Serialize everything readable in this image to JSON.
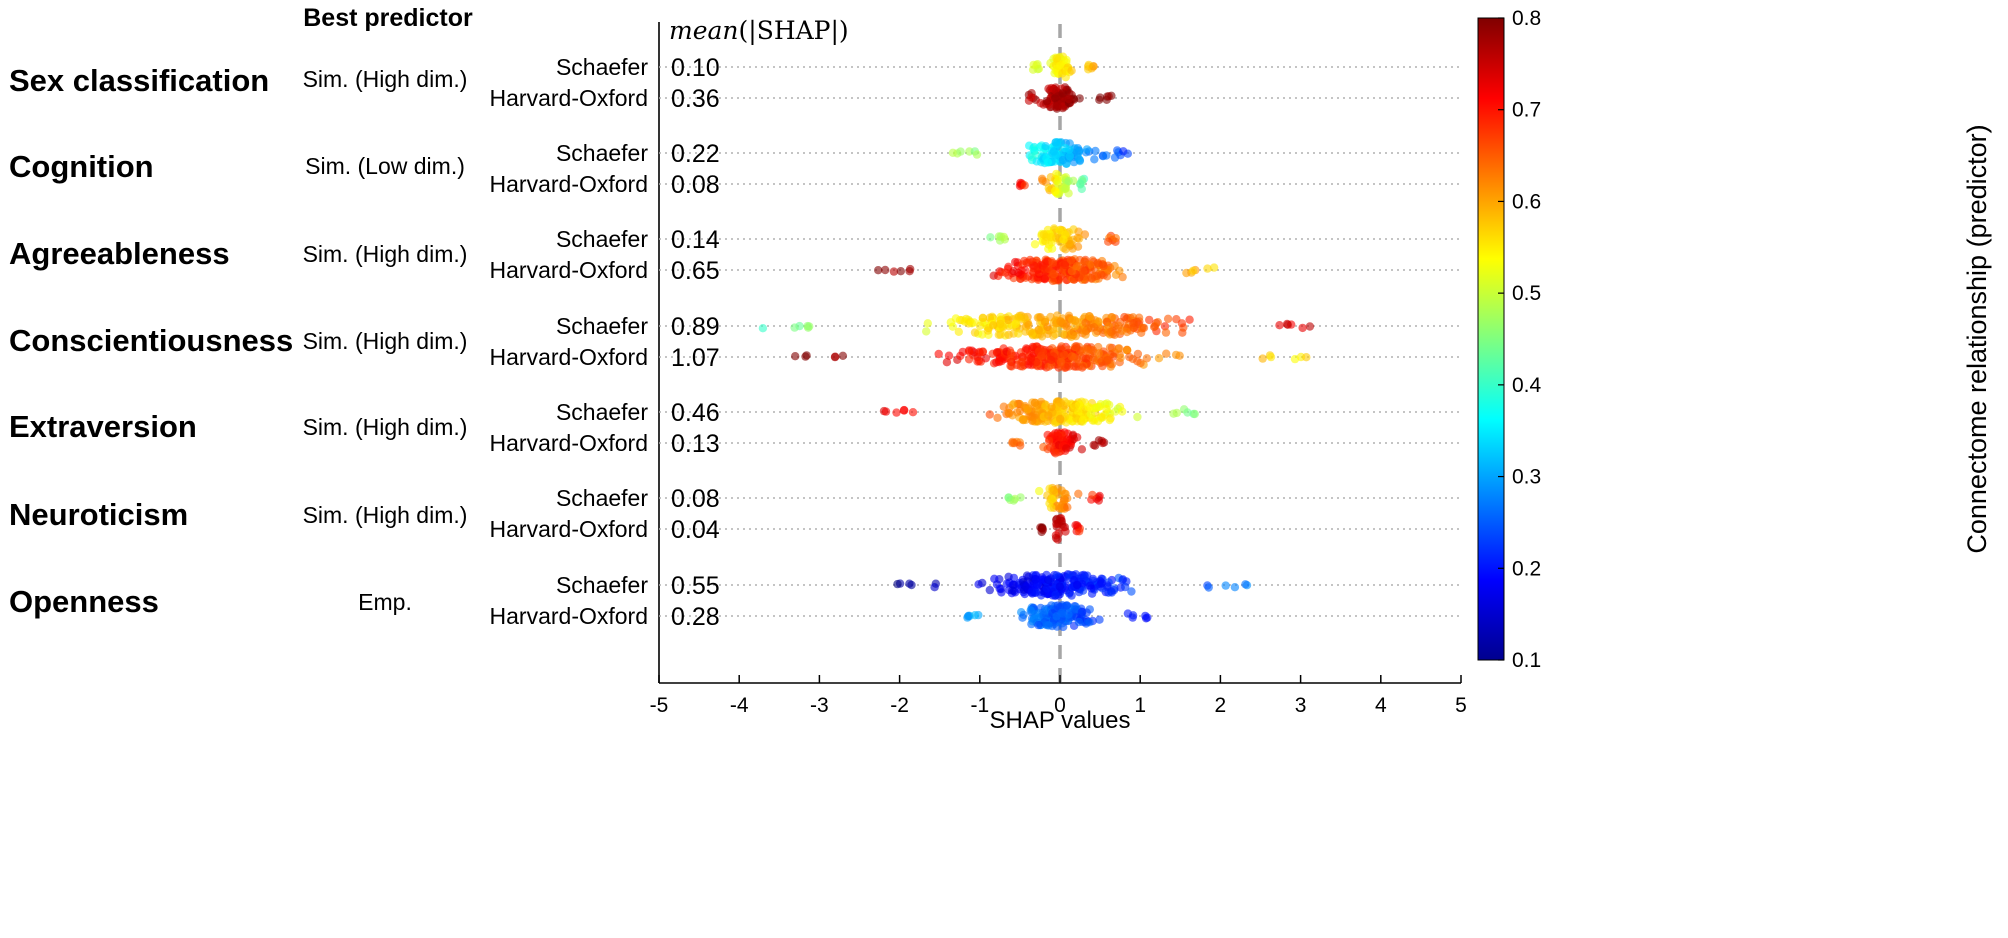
{
  "headers": {
    "best_predictor": "Best predictor",
    "mean_prefix": "mean",
    "mean_body": "(|SHAP|)"
  },
  "colors": {
    "dashed_zero": "#a6a6a6",
    "gridline": "#b0b0b0",
    "axis": "#000000"
  },
  "chart_data": {
    "type": "scatter",
    "subtype": "beeswarm",
    "xlabel": "SHAP values",
    "xlim": [
      -5,
      5
    ],
    "xticks": [
      -5,
      -4,
      -3,
      -2,
      -1,
      0,
      1,
      2,
      3,
      4,
      5
    ],
    "colorbar": {
      "label": "Connectome relationship (predictor)",
      "range": [
        0.1,
        0.8
      ],
      "ticks": [
        0.1,
        0.2,
        0.3,
        0.4,
        0.5,
        0.6,
        0.7,
        0.8
      ],
      "colormap": "jet"
    },
    "targets": [
      {
        "name": "Sex classification",
        "best_predictor": "Sim. (High dim.)",
        "rows": [
          {
            "atlas": "Schaefer",
            "mean_abs_shap": "0.10",
            "range": [
              -0.35,
              0.45
            ],
            "color_low": 0.5,
            "color_high": 0.6,
            "count": 60
          },
          {
            "atlas": "Harvard-Oxford",
            "mean_abs_shap": "0.36",
            "range": [
              -0.4,
              0.65
            ],
            "color_low": 0.76,
            "color_high": 0.8,
            "count": 90
          }
        ]
      },
      {
        "name": "Cognition",
        "best_predictor": "Sim. (Low dim.)",
        "rows": [
          {
            "atlas": "Schaefer",
            "mean_abs_shap": "0.22",
            "range": [
              -1.35,
              0.85
            ],
            "color_low": 0.5,
            "color_high": 0.22,
            "count": 110
          },
          {
            "atlas": "Harvard-Oxford",
            "mean_abs_shap": "0.08",
            "range": [
              -0.55,
              0.3
            ],
            "color_low": 0.72,
            "color_high": 0.42,
            "count": 50
          }
        ]
      },
      {
        "name": "Agreeableness",
        "best_predictor": "Sim. (High dim.)",
        "rows": [
          {
            "atlas": "Schaefer",
            "mean_abs_shap": "0.14",
            "range": [
              -0.9,
              0.7
            ],
            "color_low": 0.45,
            "color_high": 0.66,
            "count": 70
          },
          {
            "atlas": "Harvard-Oxford",
            "mean_abs_shap": "0.65",
            "range": [
              -2.3,
              1.95
            ],
            "color_low": 0.79,
            "color_high": 0.57,
            "count": 230
          }
        ]
      },
      {
        "name": "Conscientiousness",
        "best_predictor": "Sim. (High dim.)",
        "rows": [
          {
            "atlas": "Schaefer",
            "mean_abs_shap": "0.89",
            "range": [
              -4.15,
              3.25
            ],
            "color_low": 0.4,
            "color_high": 0.76,
            "count": 260
          },
          {
            "atlas": "Harvard-Oxford",
            "mean_abs_shap": "1.07",
            "range": [
              -3.4,
              3.1
            ],
            "color_low": 0.8,
            "color_high": 0.55,
            "count": 280
          }
        ]
      },
      {
        "name": "Extraversion",
        "best_predictor": "Sim. (High dim.)",
        "rows": [
          {
            "atlas": "Schaefer",
            "mean_abs_shap": "0.46",
            "range": [
              -2.2,
              1.85
            ],
            "color_low": 0.74,
            "color_high": 0.44,
            "count": 200
          },
          {
            "atlas": "Harvard-Oxford",
            "mean_abs_shap": "0.13",
            "range": [
              -0.6,
              0.55
            ],
            "color_low": 0.62,
            "color_high": 0.78,
            "count": 70
          }
        ]
      },
      {
        "name": "Neuroticism",
        "best_predictor": "Sim. (High dim.)",
        "rows": [
          {
            "atlas": "Schaefer",
            "mean_abs_shap": "0.08",
            "range": [
              -0.65,
              0.5
            ],
            "color_low": 0.45,
            "color_high": 0.72,
            "count": 50
          },
          {
            "atlas": "Harvard-Oxford",
            "mean_abs_shap": "0.04",
            "range": [
              -0.25,
              0.25
            ],
            "color_low": 0.8,
            "color_high": 0.7,
            "count": 30
          }
        ]
      },
      {
        "name": "Openness",
        "best_predictor": "Emp.",
        "rows": [
          {
            "atlas": "Schaefer",
            "mean_abs_shap": "0.55",
            "range": [
              -2.05,
              2.4
            ],
            "color_low": 0.12,
            "color_high": 0.28,
            "count": 230
          },
          {
            "atlas": "Harvard-Oxford",
            "mean_abs_shap": "0.28",
            "range": [
              -1.25,
              1.1
            ],
            "color_low": 0.3,
            "color_high": 0.2,
            "count": 150
          }
        ]
      }
    ]
  }
}
